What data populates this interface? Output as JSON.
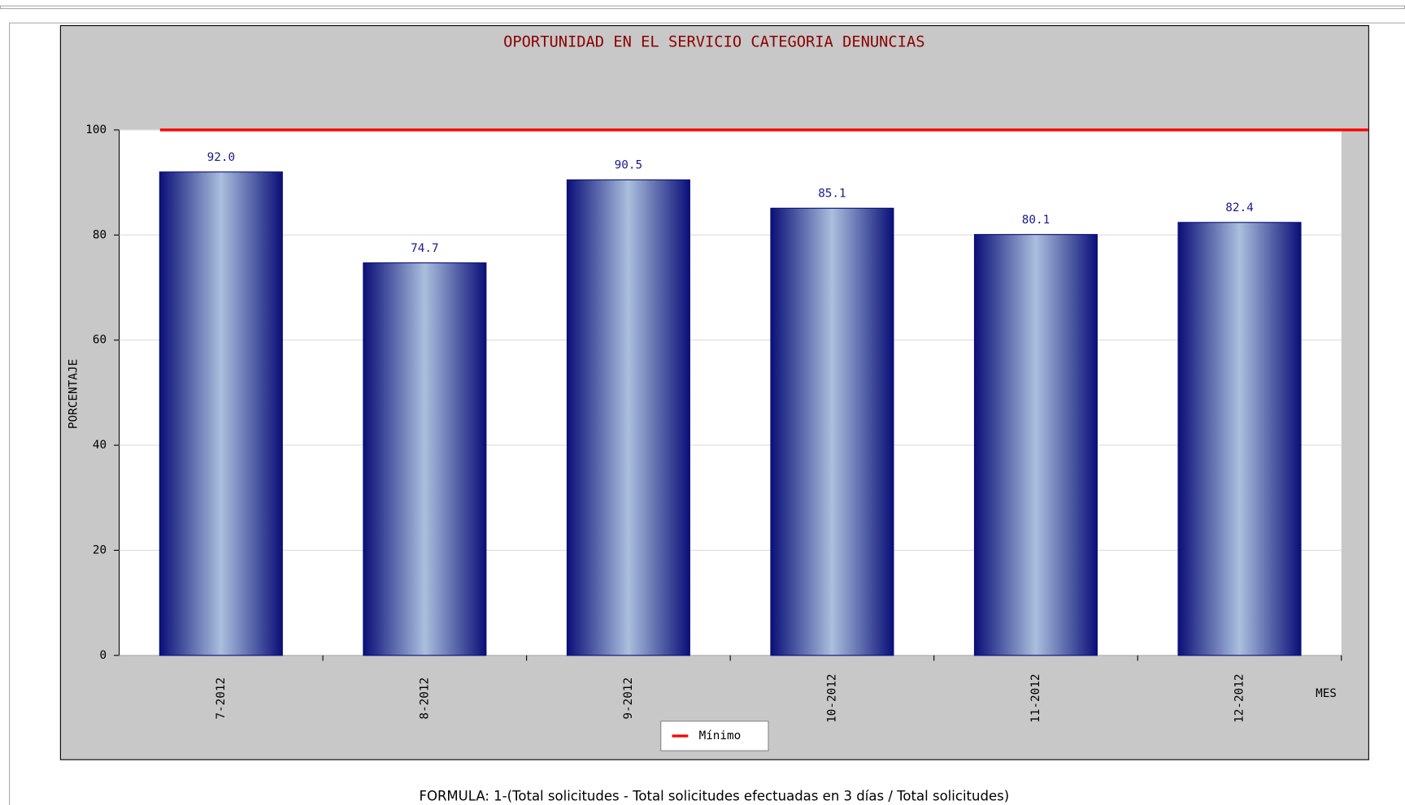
{
  "chart_data": {
    "type": "bar",
    "title": "OPORTUNIDAD EN EL SERVICIO CATEGORIA DENUNCIAS",
    "x_label": "MES",
    "y_label": "PORCENTAJE",
    "categories": [
      "7-2012",
      "8-2012",
      "9-2012",
      "10-2012",
      "11-2012",
      "12-2012"
    ],
    "values": [
      92.0,
      74.7,
      90.5,
      85.1,
      80.1,
      82.4
    ],
    "value_labels": [
      "92.0",
      "74.7",
      "90.5",
      "85.1",
      "80.1",
      "82.4"
    ],
    "color": "#0a0f78",
    "ylim": [
      0,
      100
    ],
    "yticks": [
      0,
      20,
      40,
      60,
      80,
      100
    ],
    "grid": true,
    "reference_line": {
      "name": "Mínimo",
      "value": 100,
      "color": "#ff0000"
    },
    "legend": "bottom",
    "footnote": "FORMULA: 1-(Total solicitudes - Total solicitudes efectuadas en 3 días / Total solicitudes)"
  }
}
